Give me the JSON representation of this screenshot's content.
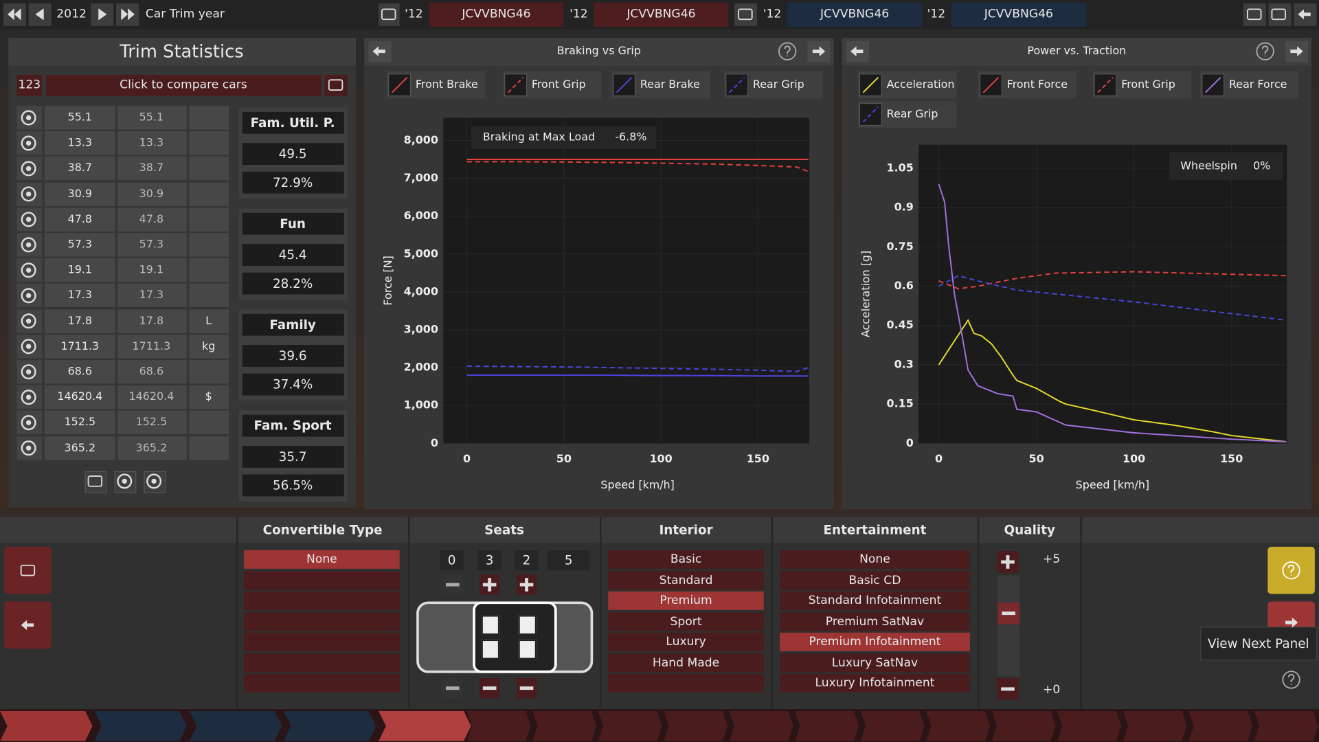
{
  "top_bar": {
    "year": "2012",
    "label": "Car Trim year",
    "slots": [
      {
        "year": "'12",
        "name": "JCVVBNG46"
      },
      {
        "year": "'12",
        "name": "JCVVBNG46"
      },
      {
        "year": "'12",
        "name": "JCVVBNG46"
      },
      {
        "year": "'12",
        "name": "JCVVBNG46"
      }
    ]
  },
  "trim_statistics": {
    "title": "Trim Statistics",
    "compare_id": "123",
    "compare_button": "Click to compare cars",
    "rows": [
      {
        "a": 55.1,
        "b": 55.1
      },
      {
        "a": 13.3,
        "b": 13.3
      },
      {
        "a": 38.7,
        "b": 38.7
      },
      {
        "a": 30.9,
        "b": 30.9
      },
      {
        "a": 47.8,
        "b": 47.8
      },
      {
        "a": 57.3,
        "b": 57.3
      },
      {
        "a": 19.1,
        "b": 19.1
      },
      {
        "a": 17.3,
        "b": 17.3
      },
      {
        "a": 17.8,
        "b": 17.8,
        "unit": "L"
      },
      {
        "a": 1711.3,
        "b": 1711.3,
        "unit": "kg"
      },
      {
        "a": 68.6,
        "b": 68.6
      },
      {
        "a": 14620.4,
        "b": 14620.4,
        "unit": "$"
      },
      {
        "a": 152.5,
        "b": 152.5
      },
      {
        "a": 365.2,
        "b": 365.2
      }
    ],
    "scores": [
      {
        "label": "Fam. Util. P.",
        "score": 49.5,
        "pct": "72.9%"
      },
      {
        "label": "Fun",
        "score": 45.4,
        "pct": "28.2%"
      },
      {
        "label": "Family",
        "score": 39.6,
        "pct": "37.4%"
      },
      {
        "label": "Fam. Sport",
        "score": 35.7,
        "pct": "56.5%"
      }
    ]
  },
  "chart_data": [
    {
      "type": "line",
      "title": "Braking vs Grip",
      "x_label": "Speed [km/h]",
      "y_label": "Force [N]",
      "annotation": {
        "label": "Braking at Max Load",
        "value": "-6.8%"
      },
      "xlim": [
        0,
        176
      ],
      "xticks": [
        0,
        50,
        100,
        150
      ],
      "ylim": [
        0,
        8600
      ],
      "yticks": [
        0,
        {
          "value": 1000,
          "label": "1,000"
        },
        {
          "value": 2000,
          "label": "2,000"
        },
        {
          "value": 3000,
          "label": "3,000"
        },
        {
          "value": 4000,
          "label": "4,000"
        },
        {
          "value": 5000,
          "label": "5,000"
        },
        {
          "value": 6000,
          "label": "6,000"
        },
        {
          "value": 7000,
          "label": "7,000"
        },
        {
          "value": 8000,
          "label": "8,000"
        }
      ],
      "grid": true,
      "series": [
        {
          "name": "Front Brake",
          "color": "#e8413f",
          "dashed": false,
          "x": [
            0,
            25,
            50,
            75,
            100,
            125,
            150,
            170,
            176
          ],
          "values": [
            7500,
            7500,
            7500,
            7500,
            7500,
            7500,
            7500,
            7500,
            7500
          ]
        },
        {
          "name": "Front Grip",
          "color": "#e8413f",
          "dashed": true,
          "x": [
            0,
            25,
            50,
            75,
            100,
            125,
            150,
            170,
            176
          ],
          "values": [
            7440,
            7440,
            7430,
            7420,
            7400,
            7380,
            7340,
            7300,
            7180
          ]
        },
        {
          "name": "Rear Brake",
          "color": "#4a45e0",
          "dashed": false,
          "x": [
            0,
            25,
            50,
            75,
            100,
            125,
            150,
            170,
            176
          ],
          "values": [
            1800,
            1800,
            1800,
            1800,
            1790,
            1790,
            1780,
            1780,
            1780
          ]
        },
        {
          "name": "Rear Grip",
          "color": "#4a45e0",
          "dashed": true,
          "x": [
            0,
            25,
            50,
            75,
            100,
            125,
            150,
            170,
            176
          ],
          "values": [
            2040,
            2030,
            2020,
            2000,
            1980,
            1960,
            1930,
            1900,
            2000
          ]
        }
      ]
    },
    {
      "type": "line",
      "title": "Power vs. Traction",
      "x_label": "Speed [km/h]",
      "y_label": "Acceleration [g]",
      "annotation": {
        "label": "Wheelspin",
        "value": "0%"
      },
      "xlim": [
        0,
        178
      ],
      "xticks": [
        0,
        50,
        100,
        150
      ],
      "ylim": [
        0,
        1.14
      ],
      "yticks": [
        0,
        0.15,
        0.3,
        0.45,
        0.6,
        0.75,
        0.9,
        1.05
      ],
      "grid": true,
      "series": [
        {
          "name": "Acceleration",
          "color": "#e6dc2a",
          "dashed": false,
          "x": [
            0,
            15,
            18,
            22,
            27,
            32,
            38,
            40,
            50,
            62,
            65,
            80,
            100,
            120,
            140,
            150,
            178
          ],
          "values": [
            0.3,
            0.47,
            0.42,
            0.41,
            0.38,
            0.33,
            0.26,
            0.24,
            0.21,
            0.16,
            0.15,
            0.125,
            0.09,
            0.07,
            0.045,
            0.03,
            0.006
          ]
        },
        {
          "name": "Front Force",
          "color": "#e8413f",
          "dashed": false,
          "x": [
            0,
            178
          ],
          "values": [
            null,
            null
          ]
        },
        {
          "name": "Front Grip",
          "color": "#e8413f",
          "dashed": true,
          "x": [
            0,
            10,
            20,
            40,
            60,
            100,
            178
          ],
          "values": [
            0.62,
            0.59,
            0.6,
            0.63,
            0.65,
            0.655,
            0.64
          ]
        },
        {
          "name": "Rear Force",
          "color": "#a070e0",
          "dashed": false,
          "x": [
            0,
            3,
            5,
            8,
            12,
            15,
            20,
            30,
            38,
            40,
            50,
            65,
            100,
            150,
            178
          ],
          "values": [
            0.99,
            0.92,
            0.76,
            0.57,
            0.41,
            0.28,
            0.22,
            0.19,
            0.18,
            0.13,
            0.12,
            0.07,
            0.04,
            0.016,
            0.006
          ]
        },
        {
          "name": "Rear Grip",
          "color": "#4a45e0",
          "dashed": true,
          "x": [
            0,
            10,
            20,
            40,
            60,
            100,
            178
          ],
          "values": [
            0.6,
            0.64,
            0.62,
            0.585,
            0.57,
            0.54,
            0.47
          ]
        }
      ]
    }
  ],
  "bottom_panel": {
    "convertible_type": {
      "title": "Convertible Type",
      "options": [
        "None"
      ],
      "selected": 0
    },
    "seats": {
      "title": "Seats",
      "counts": [
        0,
        3,
        2,
        5
      ]
    },
    "interior": {
      "title": "Interior",
      "options": [
        "Basic",
        "Standard",
        "Premium",
        "Sport",
        "Luxury",
        "Hand Made"
      ],
      "selected": 2
    },
    "entertainment": {
      "title": "Entertainment",
      "options": [
        "None",
        "Basic CD",
        "Standard Infotainment",
        "Premium SatNav",
        "Premium Infotainment",
        "Luxury SatNav",
        "Luxury Infotainment"
      ],
      "selected": 4
    },
    "quality": {
      "title": "Quality",
      "max": "+5",
      "min": "+0"
    }
  },
  "tooltip": "View Next Panel"
}
